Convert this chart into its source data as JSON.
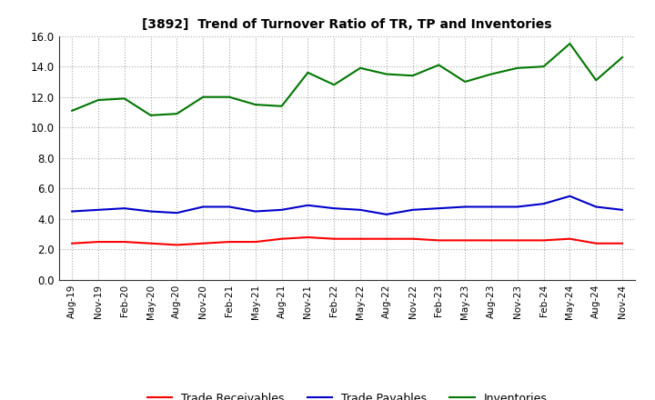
{
  "title": "[3892]  Trend of Turnover Ratio of TR, TP and Inventories",
  "labels": [
    "Aug-19",
    "Nov-19",
    "Feb-20",
    "May-20",
    "Aug-20",
    "Nov-20",
    "Feb-21",
    "May-21",
    "Aug-21",
    "Nov-21",
    "Feb-22",
    "May-22",
    "Aug-22",
    "Nov-22",
    "Feb-23",
    "May-23",
    "Aug-23",
    "Nov-23",
    "Feb-24",
    "May-24",
    "Aug-24",
    "Nov-24"
  ],
  "trade_receivables": [
    2.4,
    2.5,
    2.5,
    2.4,
    2.3,
    2.4,
    2.5,
    2.5,
    2.7,
    2.8,
    2.7,
    2.7,
    2.7,
    2.7,
    2.6,
    2.6,
    2.6,
    2.6,
    2.6,
    2.7,
    2.4,
    2.4
  ],
  "trade_payables": [
    4.5,
    4.6,
    4.7,
    4.5,
    4.4,
    4.8,
    4.8,
    4.5,
    4.6,
    4.9,
    4.7,
    4.6,
    4.3,
    4.6,
    4.7,
    4.8,
    4.8,
    4.8,
    5.0,
    5.5,
    4.8,
    4.6
  ],
  "inventories": [
    11.1,
    11.8,
    11.9,
    10.8,
    10.9,
    12.0,
    12.0,
    11.5,
    11.4,
    13.6,
    12.8,
    13.9,
    13.5,
    13.4,
    14.1,
    13.0,
    13.5,
    13.9,
    14.0,
    15.5,
    13.1,
    14.6
  ],
  "color_tr": "#ff0000",
  "color_tp": "#0000cc",
  "color_inv": "#007700",
  "ylim": [
    0.0,
    16.0
  ],
  "yticks": [
    0.0,
    2.0,
    4.0,
    6.0,
    8.0,
    10.0,
    12.0,
    14.0,
    16.0
  ],
  "legend_tr": "Trade Receivables",
  "legend_tp": "Trade Payables",
  "legend_inv": "Inventories",
  "background_color": "#ffffff",
  "grid_color": "#aaaaaa"
}
